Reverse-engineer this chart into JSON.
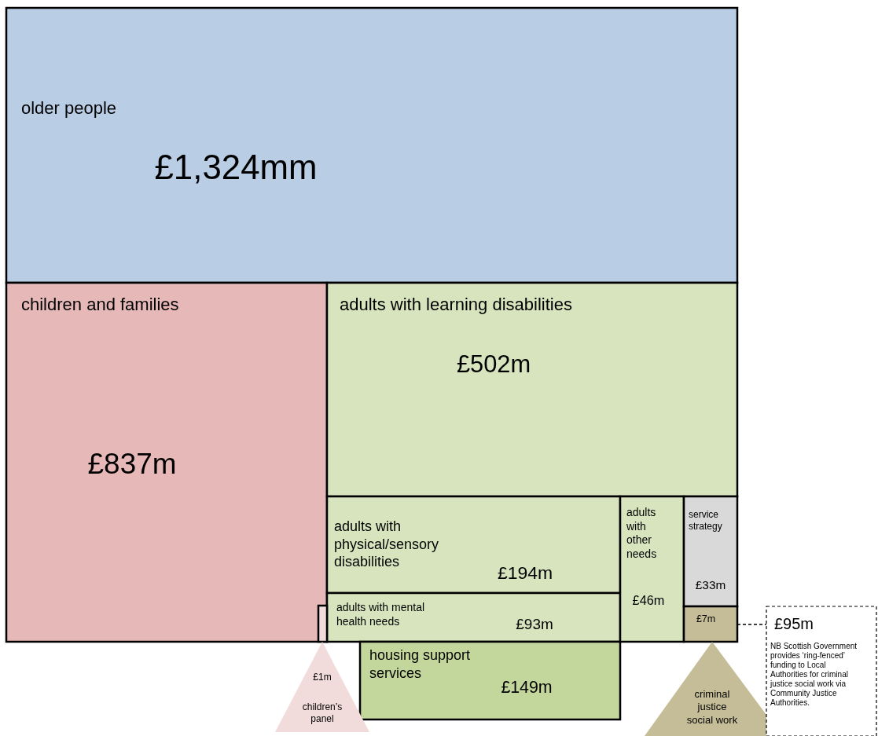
{
  "chart_data": {
    "type": "other",
    "categories": [
      "older people",
      "children and families",
      "adults with learning disabilities",
      "adults with physical/sensory disabilities",
      "adults with mental health needs",
      "housing support services",
      "adults with other needs",
      "service strategy",
      "criminal justice social work",
      "children’s panel"
    ],
    "values": [
      1324,
      837,
      502,
      194,
      93,
      149,
      46,
      33,
      7,
      1
    ],
    "value_labels": [
      "£1,324mm",
      "£837m",
      "£502m",
      "£194m",
      "£93m",
      "£149m",
      "£46m",
      "£33m",
      "£7m",
      "£1m"
    ],
    "colors": [
      "#b9cde5",
      "#e6b9b8",
      "#d7e4bd",
      "#d7e4bd",
      "#d7e4bd",
      "#c3d69b",
      "#d7e4bd",
      "#d9d9d9",
      "#c4bd97",
      "#f2dcdb"
    ],
    "annotations": [
      "£95m",
      "NB Scottish Government provides ‘ring-fenced’ funding to Local Authorities for criminal justice social work via Community Justice Authorities."
    ]
  }
}
